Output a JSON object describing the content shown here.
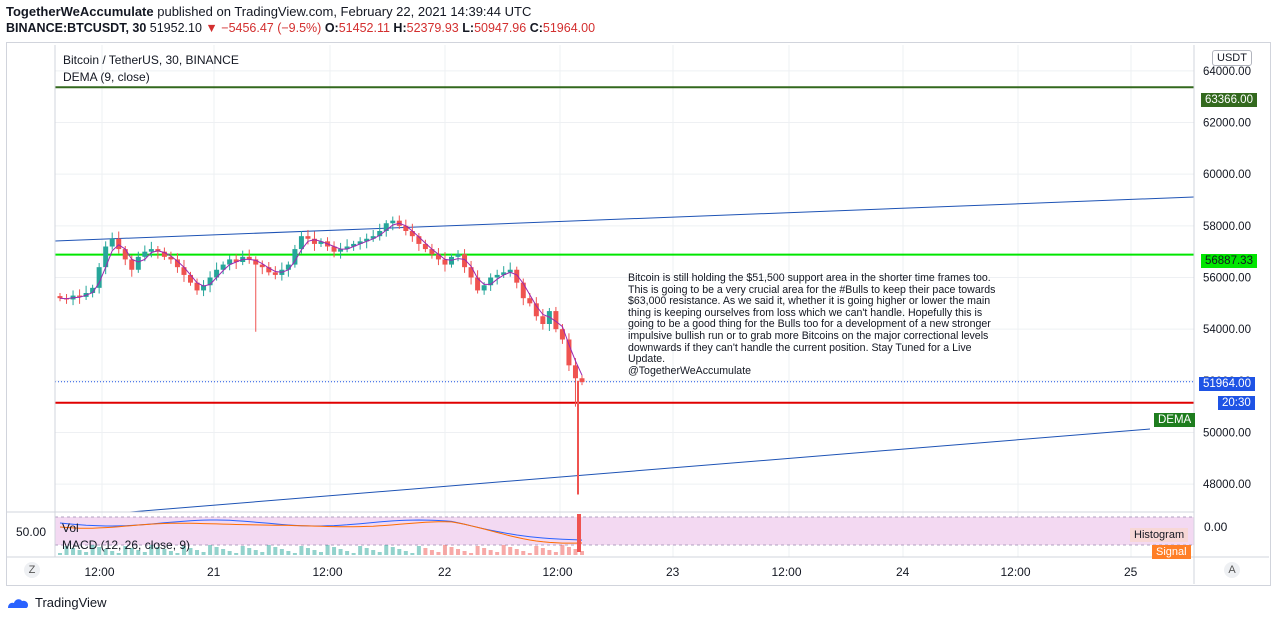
{
  "header": {
    "publisher": "TogetherWeAccumulate",
    "published_text": "published on TradingView.com, February 22, 2021 14:39:44 UTC",
    "symbol": "BINANCE:BTCUSDT, 30",
    "last_price": "51952.10",
    "change": "−5456.47 (−9.5%)",
    "o_label": "O:",
    "o_value": "51452.11",
    "h_label": "H:",
    "h_value": "52379.93",
    "l_label": "L:",
    "l_value": "50947.96",
    "c_label": "C:",
    "c_value": "51964.00"
  },
  "legend": {
    "title": "Bitcoin / TetherUS, 30, BINANCE",
    "indicator": "DEMA (9, close)"
  },
  "currency_button": "USDT",
  "annotation": {
    "text": "Bitcoin is still holding the $51,500 support area in the shorter time frames too. This is going to be a very crucial area for the #Bulls to keep their pace towards $63,000 resistance. As we said it, whether it is going higher or lower the main thing is keeping ourselves from loss which we can't handle. Hopefully this is going to be a good thing for the Bulls too for a development of a new stronger impulsive bullish run or to grab more Bitcoins on the major correctional levels downwards if they can't handle the current position. Stay Tuned for a Live Update.",
    "signature": "@TogetherWeAccumulate"
  },
  "price_tags": {
    "resistance": "63366.00",
    "mid_level": "56887.33",
    "last": "51964.00",
    "countdown": "20:30",
    "dema": "DEMA"
  },
  "subpane": {
    "vol_label": "Vol",
    "macd_label": "MACD (12, 26, close, 9)",
    "left_value": "50.00",
    "right_value": "0.00",
    "histogram_tag": "Histogram",
    "signal_tag": "Signal"
  },
  "footer": {
    "brand": "TradingView",
    "z_button": "Z",
    "a_button": "A"
  },
  "colors": {
    "resistance": "#33691e",
    "mid_level": "#00e600",
    "support": "#e00000",
    "trend": "#1e53b5",
    "up": "#26a69a",
    "down": "#ef5350",
    "tag_blue": "#1e53e5",
    "tag_green": "#1e7d1e"
  },
  "chart_data": {
    "type": "candlestick",
    "title": "Bitcoin / TetherUS, 30, BINANCE",
    "x_tick_labels": [
      "12:00",
      "21",
      "12:00",
      "22",
      "12:00",
      "23",
      "12:00",
      "24",
      "12:00",
      "25"
    ],
    "y_tick_labels": [
      "48000.00",
      "50000.00",
      "52000.00",
      "54000.00",
      "56000.00",
      "58000.00",
      "60000.00",
      "62000.00",
      "64000.00"
    ],
    "ylim": [
      47000,
      65000
    ],
    "horizontal_levels": [
      {
        "name": "resistance",
        "value": 63366.0
      },
      {
        "name": "mid_level",
        "value": 56887.33
      },
      {
        "name": "support",
        "value": 51150.0
      }
    ],
    "trend_lines": [
      {
        "name": "upper_channel",
        "from": {
          "x": "20 Feb 00:00",
          "y": 57700
        },
        "to": {
          "x": "25 Feb 06:00",
          "y": 59550
        }
      },
      {
        "name": "lower_channel",
        "from": {
          "x": "20 Feb 12:00",
          "y": 47100
        },
        "to": {
          "x": "25 Feb 00:00",
          "y": 50200
        }
      }
    ],
    "candles_close": [
      55200,
      55150,
      55300,
      55250,
      55400,
      55600,
      56400,
      57200,
      57500,
      57100,
      56700,
      56300,
      56800,
      57000,
      57100,
      57000,
      56800,
      56700,
      56400,
      56100,
      55800,
      55500,
      55700,
      56000,
      56300,
      56500,
      56700,
      56600,
      56800,
      56700,
      56500,
      56400,
      56200,
      56100,
      56300,
      56500,
      57100,
      57600,
      57500,
      57300,
      57400,
      57200,
      57000,
      57100,
      57200,
      57300,
      57400,
      57500,
      57600,
      57800,
      58100,
      58200,
      58000,
      57800,
      57600,
      57300,
      57100,
      56900,
      56700,
      56500,
      56800,
      56900,
      56400,
      56000,
      55500,
      55700,
      56000,
      56100,
      56200,
      56300,
      55800,
      55200,
      55000,
      54500,
      54200,
      54700,
      54000,
      53600,
      52600,
      52100,
      51952
    ]
  }
}
